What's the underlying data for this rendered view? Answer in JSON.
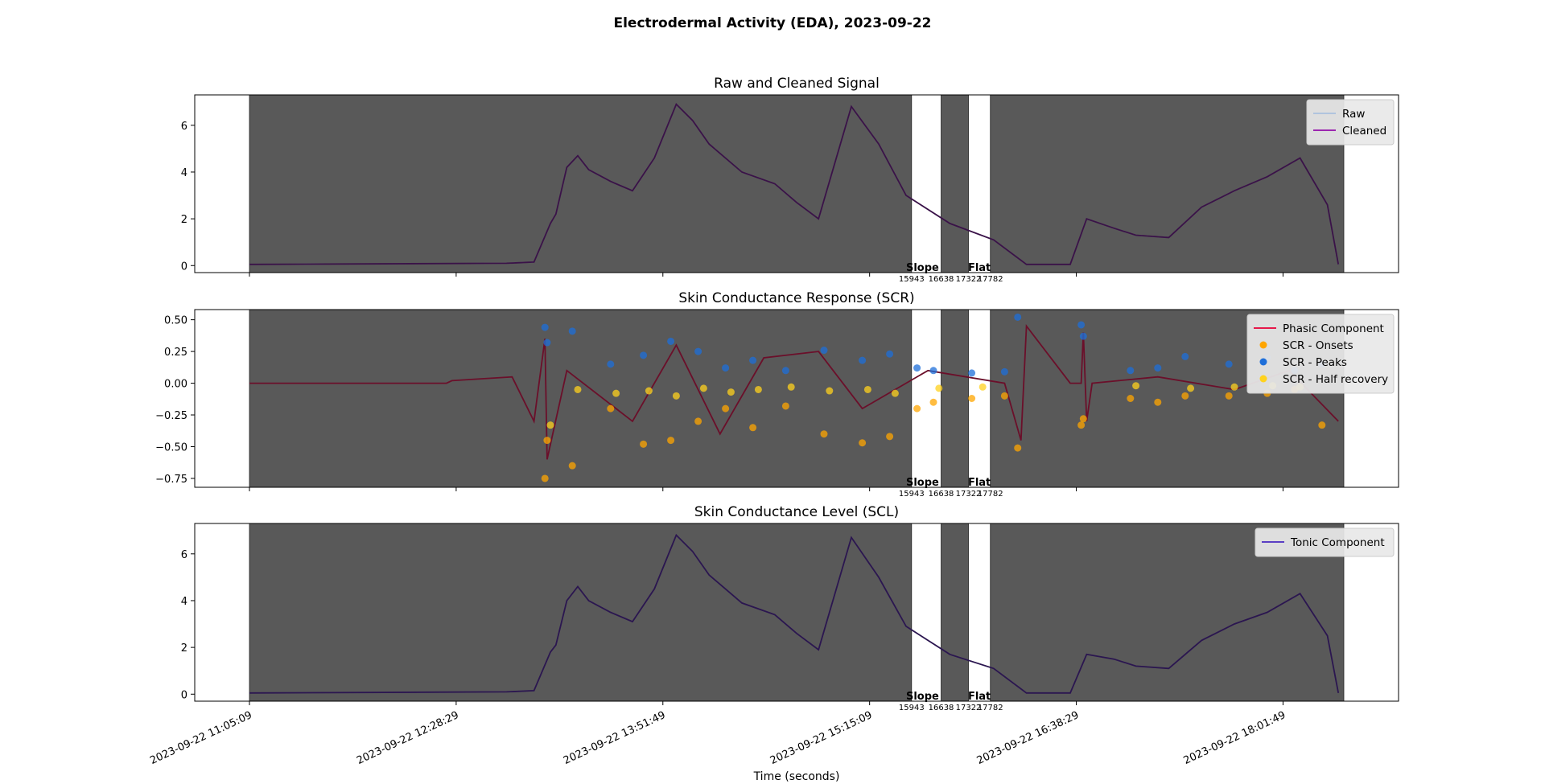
{
  "figure": {
    "title": "Electrodermal Activity (EDA), 2023-09-22",
    "xlabel": "Time (seconds)"
  },
  "colors": {
    "shade": "#595959",
    "raw": "#b0c4de",
    "cleaned": "#9c27b0",
    "phasic": "#e6194b",
    "onsets": "#ffa500",
    "peaks": "#1e6fd9",
    "half_recovery": "#ffd21e",
    "tonic": "#5b3fc4",
    "signal_dark": "#3a1248"
  },
  "chart_data": [
    {
      "type": "line",
      "title": "Raw and Cleaned Signal",
      "ylim": [
        -0.3,
        7.3
      ],
      "yticks": [
        "0",
        "2",
        "4",
        "6"
      ],
      "ytick_values": [
        0,
        2,
        4,
        6
      ],
      "grid": false,
      "legend_position": "top-right",
      "legend": [
        "Raw",
        "Cleaned"
      ],
      "time_hours": [
        0.0,
        2.35,
        2.6,
        2.75,
        2.8,
        2.9,
        3.0,
        3.1,
        3.3,
        3.5,
        3.7,
        3.9,
        4.05,
        4.2,
        4.5,
        4.8,
        5.0,
        5.2,
        5.5,
        5.75,
        6.0,
        6.4,
        6.8,
        7.1,
        7.4,
        7.5,
        7.65,
        7.9,
        8.1,
        8.4,
        8.7,
        9.0,
        9.3,
        9.6,
        9.85,
        9.95
      ],
      "series": [
        {
          "name": "Raw",
          "values": [
            0.05,
            0.1,
            0.15,
            1.8,
            2.2,
            4.2,
            4.7,
            4.1,
            3.6,
            3.2,
            4.6,
            6.9,
            6.2,
            5.2,
            4.0,
            3.5,
            2.7,
            2.0,
            6.8,
            5.2,
            3.0,
            1.8,
            1.1,
            0.05,
            0.05,
            0.05,
            2.0,
            1.6,
            1.3,
            1.2,
            2.5,
            3.2,
            3.8,
            4.6,
            2.6,
            0.05
          ]
        },
        {
          "name": "Cleaned",
          "values": [
            0.05,
            0.1,
            0.15,
            1.8,
            2.2,
            4.2,
            4.7,
            4.1,
            3.6,
            3.2,
            4.6,
            6.9,
            6.2,
            5.2,
            4.0,
            3.5,
            2.7,
            2.0,
            6.8,
            5.2,
            3.0,
            1.8,
            1.1,
            0.05,
            0.05,
            0.05,
            2.0,
            1.6,
            1.3,
            1.2,
            2.5,
            3.2,
            3.8,
            4.6,
            2.6,
            0.05
          ]
        }
      ]
    },
    {
      "type": "line",
      "title": "Skin Conductance Response (SCR)",
      "ylim": [
        -0.82,
        0.58
      ],
      "yticks": [
        "0.50",
        "0.25",
        "0.00",
        "−0.25",
        "−0.50",
        "−0.75"
      ],
      "ytick_values": [
        0.5,
        0.25,
        0.0,
        -0.25,
        -0.5,
        -0.75
      ],
      "grid": false,
      "legend_position": "top-right",
      "legend": [
        "Phasic Component",
        "SCR - Onsets",
        "SCR - Peaks",
        "SCR - Half recovery"
      ],
      "series": [
        {
          "name": "Phasic Component",
          "time_hours": [
            0.0,
            1.8,
            1.85,
            2.4,
            2.6,
            2.7,
            2.72,
            2.9,
            3.5,
            3.9,
            4.3,
            4.7,
            5.2,
            5.6,
            6.2,
            6.9,
            7.05,
            7.1,
            7.5,
            7.6,
            7.62,
            7.65,
            7.7,
            8.3,
            9.0,
            9.5,
            9.95
          ],
          "values": [
            0.0,
            0.0,
            0.02,
            0.05,
            -0.3,
            0.35,
            -0.6,
            0.1,
            -0.3,
            0.3,
            -0.4,
            0.2,
            0.25,
            -0.2,
            0.1,
            0.0,
            -0.45,
            0.45,
            0.0,
            0.0,
            0.4,
            -0.3,
            0.0,
            0.05,
            -0.05,
            0.1,
            -0.3
          ]
        },
        {
          "name": "SCR - Peaks",
          "time_hours": [
            2.7,
            2.72,
            2.95,
            3.3,
            3.6,
            3.85,
            4.1,
            4.35,
            4.6,
            4.9,
            5.25,
            5.6,
            5.85,
            6.1,
            6.25,
            6.6,
            6.9,
            7.02,
            7.6,
            7.62,
            8.05,
            8.3,
            8.55,
            8.95,
            9.3,
            9.55,
            9.8
          ],
          "values": [
            0.44,
            0.32,
            0.41,
            0.15,
            0.22,
            0.33,
            0.25,
            0.12,
            0.18,
            0.1,
            0.26,
            0.18,
            0.23,
            0.12,
            0.1,
            0.08,
            0.09,
            0.52,
            0.46,
            0.37,
            0.1,
            0.12,
            0.21,
            0.15,
            0.2,
            0.1,
            0.15
          ]
        },
        {
          "name": "SCR - Onsets",
          "time_hours": [
            2.7,
            2.72,
            2.95,
            3.3,
            3.6,
            3.85,
            4.1,
            4.35,
            4.6,
            4.9,
            5.25,
            5.6,
            5.85,
            6.1,
            6.25,
            6.6,
            6.9,
            7.02,
            7.6,
            7.62,
            8.05,
            8.3,
            8.55,
            8.95,
            9.3,
            9.55,
            9.8
          ],
          "values": [
            -0.75,
            -0.45,
            -0.65,
            -0.2,
            -0.48,
            -0.45,
            -0.3,
            -0.2,
            -0.35,
            -0.18,
            -0.4,
            -0.47,
            -0.42,
            -0.2,
            -0.15,
            -0.12,
            -0.1,
            -0.51,
            -0.33,
            -0.28,
            -0.12,
            -0.15,
            -0.1,
            -0.1,
            -0.08,
            -0.05,
            -0.33
          ]
        },
        {
          "name": "SCR - Half recovery",
          "time_hours": [
            2.75,
            3.0,
            3.35,
            3.65,
            3.9,
            4.15,
            4.4,
            4.65,
            4.95,
            5.3,
            5.65,
            5.9,
            6.3,
            6.7,
            8.1,
            8.6,
            9.0,
            9.35,
            9.6
          ],
          "values": [
            -0.33,
            -0.05,
            -0.08,
            -0.06,
            -0.1,
            -0.04,
            -0.07,
            -0.05,
            -0.03,
            -0.06,
            -0.05,
            -0.08,
            -0.04,
            -0.03,
            -0.02,
            -0.04,
            -0.03,
            -0.02,
            -0.03
          ]
        }
      ]
    },
    {
      "type": "line",
      "title": "Skin Conductance Level (SCL)",
      "ylim": [
        -0.3,
        7.3
      ],
      "yticks": [
        "0",
        "2",
        "4",
        "6"
      ],
      "ytick_values": [
        0,
        2,
        4,
        6
      ],
      "grid": false,
      "legend_position": "top-right",
      "legend": [
        "Tonic Component"
      ],
      "time_hours": [
        0.0,
        2.35,
        2.6,
        2.75,
        2.8,
        2.9,
        3.0,
        3.1,
        3.3,
        3.5,
        3.7,
        3.9,
        4.05,
        4.2,
        4.5,
        4.8,
        5.0,
        5.2,
        5.5,
        5.75,
        6.0,
        6.4,
        6.8,
        7.1,
        7.4,
        7.5,
        7.65,
        7.9,
        8.1,
        8.4,
        8.7,
        9.0,
        9.3,
        9.6,
        9.85,
        9.95
      ],
      "series": [
        {
          "name": "Tonic Component",
          "values": [
            0.05,
            0.1,
            0.15,
            1.8,
            2.1,
            4.0,
            4.6,
            4.0,
            3.5,
            3.1,
            4.5,
            6.8,
            6.1,
            5.1,
            3.9,
            3.4,
            2.6,
            1.9,
            6.7,
            5.0,
            2.9,
            1.7,
            1.1,
            0.05,
            0.05,
            0.05,
            1.7,
            1.5,
            1.2,
            1.1,
            2.3,
            3.0,
            3.5,
            4.3,
            2.5,
            0.05
          ]
        }
      ]
    }
  ],
  "x_axis": {
    "xlim_hours": [
      -0.5,
      10.5
    ],
    "tick_hours": [
      0,
      1.8889,
      3.7778,
      5.6667,
      7.5556,
      9.4444
    ],
    "tick_labels": [
      "2023-09-22 11:05:09",
      "2023-09-22 12:28:29",
      "2023-09-22 13:51:49",
      "2023-09-22 15:15:09",
      "2023-09-22 16:38:29",
      "2023-09-22 18:01:49"
    ]
  },
  "shaded_regions_hours": [
    [
      0.0,
      6.05
    ],
    [
      6.32,
      6.57
    ],
    [
      6.77,
      10.0
    ]
  ],
  "annotations": {
    "slope_label": "Slope",
    "flat_label": "Flat",
    "index_labels": [
      "15943",
      "16638",
      "17322",
      "17782"
    ],
    "slope_at_hours": 6.15,
    "flat_at_hours": 6.67,
    "index_at_hours": [
      6.05,
      6.32,
      6.57,
      6.77
    ]
  }
}
